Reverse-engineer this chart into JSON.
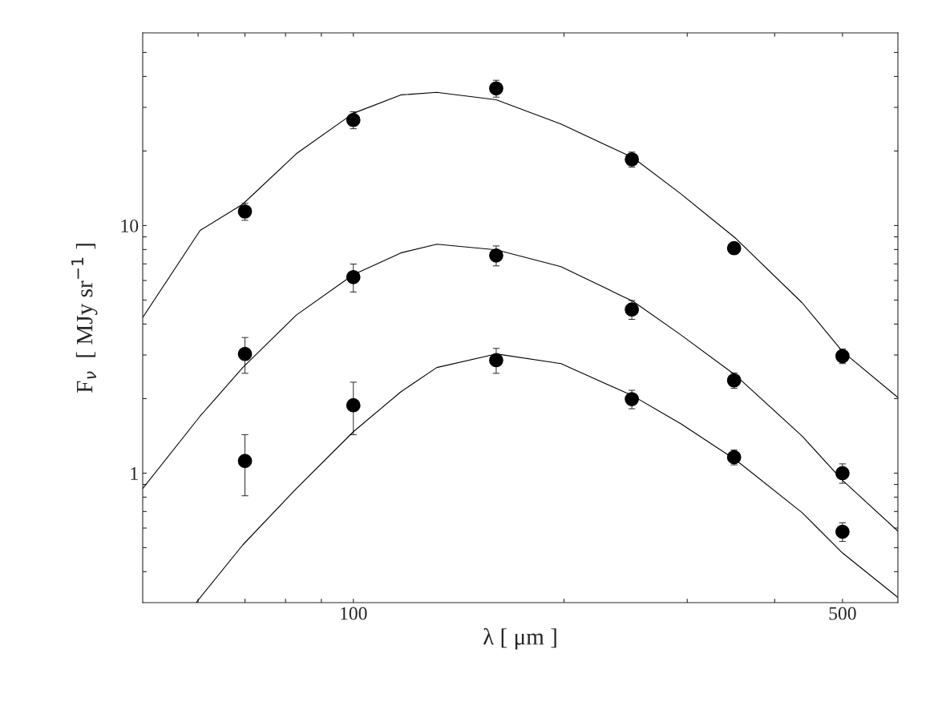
{
  "chart_data": {
    "type": "line",
    "xlabel": "λ [ μm ]",
    "ylabel": "F$_{ν}$  [ MJy sr$^{−1}$ ]",
    "log": "xy",
    "grid": false,
    "xlim": [
      50,
      600
    ],
    "ylim": [
      0.3,
      60
    ],
    "xticks": [
      {
        "value": 60,
        "label": null
      },
      {
        "value": 70,
        "label": null
      },
      {
        "value": 80,
        "label": null
      },
      {
        "value": 90,
        "label": null
      },
      100,
      {
        "value": 200,
        "label": null
      },
      {
        "value": 300,
        "label": null
      },
      {
        "value": 400,
        "label": null
      },
      500
    ],
    "yticks": [
      {
        "value": 0.4,
        "label": null
      },
      {
        "value": 0.5,
        "label": null
      },
      {
        "value": 0.6,
        "label": null
      },
      {
        "value": 0.7,
        "label": null
      },
      {
        "value": 0.8,
        "label": null
      },
      {
        "value": 0.9,
        "label": null
      },
      1,
      {
        "value": 2,
        "label": null
      },
      {
        "value": 3,
        "label": null
      },
      {
        "value": 4,
        "label": null
      },
      {
        "value": 5,
        "label": null
      },
      {
        "value": 6,
        "label": null
      },
      {
        "value": 7,
        "label": null
      },
      {
        "value": 8,
        "label": null
      },
      {
        "value": 9,
        "label": null
      },
      10,
      {
        "value": 20,
        "label": null
      },
      {
        "value": 30,
        "label": null
      },
      {
        "value": 40,
        "label": null
      },
      {
        "value": 50,
        "label": null
      }
    ],
    "series": [
      {
        "color": "#000000",
        "x": [
          50,
          60.4,
          69.5,
          82.9,
          100,
          116.9,
          131.6,
          160,
          198,
          251,
          294,
          352,
          438,
          500,
          600
        ],
        "values": [
          4.25,
          9.56,
          12.2,
          19.5,
          28.4,
          33.7,
          34.5,
          32.2,
          25.7,
          18.8,
          13.4,
          8.87,
          4.87,
          3.1,
          2.02
        ]
      },
      {
        "color": "#000000",
        "x": [
          50,
          60.4,
          69.5,
          82.9,
          100,
          116.9,
          131.6,
          160,
          198,
          251,
          294,
          352,
          438,
          500,
          600
        ],
        "values": [
          0.867,
          1.7,
          2.67,
          4.35,
          6.33,
          7.75,
          8.41,
          7.98,
          6.82,
          4.94,
          3.61,
          2.48,
          1.41,
          0.935,
          0.583
        ]
      },
      {
        "color": "#000000",
        "x": [
          59.6,
          69.5,
          82.9,
          100,
          116.9,
          131.6,
          160,
          198,
          251,
          294,
          352,
          438,
          500,
          600
        ],
        "values": [
          0.3,
          0.513,
          0.867,
          1.47,
          2.13,
          2.67,
          3.03,
          2.77,
          2.05,
          1.58,
          1.13,
          0.692,
          0.476,
          0.315
        ]
      },
      {
        "type": "scatter",
        "marker": "circle",
        "color": "#000000",
        "x": [
          70,
          100,
          160,
          250,
          350,
          500
        ],
        "values": [
          11.4,
          26.7,
          35.8,
          18.5,
          8.1,
          2.97
        ],
        "errors": [
          0.9,
          2.1,
          2.8,
          1.3,
          0.4,
          0.2
        ]
      },
      {
        "type": "scatter",
        "marker": "circle",
        "color": "#000000",
        "x": [
          70,
          100,
          160,
          250,
          350,
          500
        ],
        "values": [
          3.03,
          6.19,
          7.57,
          4.58,
          2.37,
          1.0
        ],
        "errors": [
          0.5,
          0.8,
          0.7,
          0.4,
          0.17,
          0.09
        ]
      },
      {
        "type": "scatter",
        "marker": "circle",
        "color": "#000000",
        "x": [
          70,
          100,
          160,
          250,
          350,
          500
        ],
        "values": [
          1.12,
          1.88,
          2.86,
          1.99,
          1.16,
          0.58
        ],
        "errors": [
          0.31,
          0.45,
          0.33,
          0.17,
          0.08,
          0.05
        ]
      }
    ]
  }
}
